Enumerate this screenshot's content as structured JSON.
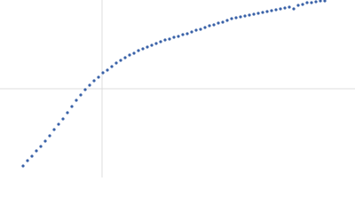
{
  "chart_data": {
    "type": "scatter",
    "color": "#3a62a8",
    "xlim": [
      -1.15,
      2.85
    ],
    "ylim": [
      -1,
      1
    ],
    "x": [
      -0.89,
      -0.84,
      -0.79,
      -0.74,
      -0.69,
      -0.64,
      -0.59,
      -0.54,
      -0.49,
      -0.44,
      -0.39,
      -0.34,
      -0.29,
      -0.24,
      -0.19,
      -0.14,
      -0.09,
      -0.04,
      0.01,
      0.06,
      0.11,
      0.16,
      0.21,
      0.26,
      0.31,
      0.36,
      0.41,
      0.46,
      0.51,
      0.56,
      0.61,
      0.66,
      0.71,
      0.76,
      0.81,
      0.86,
      0.91,
      0.96,
      1.01,
      1.06,
      1.11,
      1.16,
      1.21,
      1.26,
      1.31,
      1.36,
      1.41,
      1.46,
      1.51,
      1.56,
      1.61,
      1.66,
      1.71,
      1.76,
      1.81,
      1.86,
      1.91,
      1.96,
      2.01,
      2.06,
      2.11,
      2.16,
      2.21,
      2.26,
      2.31,
      2.36,
      2.41,
      2.46,
      2.51
    ],
    "values": [
      -0.87,
      -0.81,
      -0.76,
      -0.7,
      -0.65,
      -0.59,
      -0.53,
      -0.46,
      -0.4,
      -0.34,
      -0.27,
      -0.2,
      -0.13,
      -0.07,
      -0.01,
      0.04,
      0.09,
      0.13,
      0.18,
      0.21,
      0.25,
      0.29,
      0.32,
      0.35,
      0.38,
      0.4,
      0.43,
      0.45,
      0.47,
      0.49,
      0.51,
      0.53,
      0.55,
      0.56,
      0.58,
      0.59,
      0.61,
      0.62,
      0.64,
      0.66,
      0.67,
      0.69,
      0.71,
      0.72,
      0.74,
      0.75,
      0.77,
      0.79,
      0.8,
      0.81,
      0.82,
      0.83,
      0.84,
      0.85,
      0.86,
      0.87,
      0.88,
      0.89,
      0.9,
      0.91,
      0.92,
      0.9,
      0.94,
      0.95,
      0.97,
      0.97,
      0.98,
      0.99,
      0.99
    ]
  }
}
